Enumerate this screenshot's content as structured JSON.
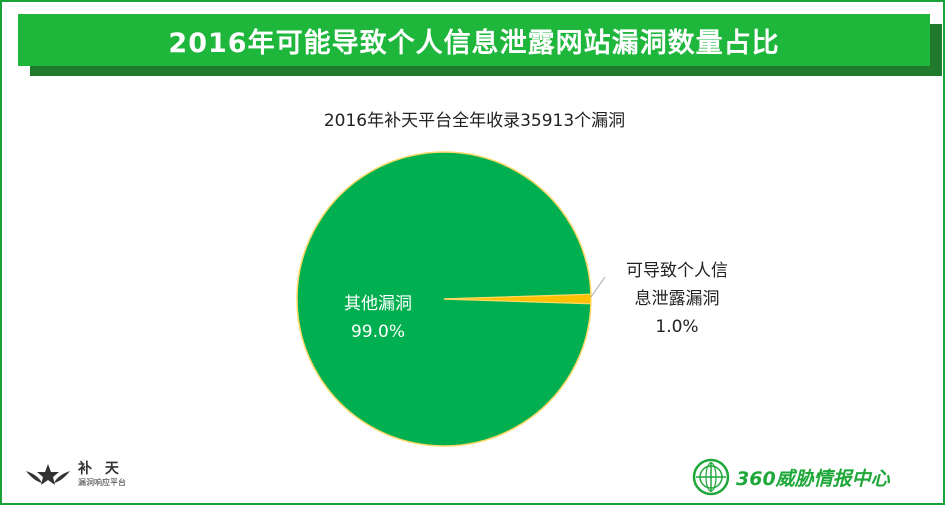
{
  "header": {
    "title": "2016年可能导致个人信息泄露网站漏洞数量占比"
  },
  "chart_data": {
    "type": "pie",
    "title": "2016年补天平台全年收录35913个漏洞",
    "slices": [
      {
        "name_lines": [
          "其他漏洞"
        ],
        "value": 99.0,
        "label": "99.0%",
        "color": "#00b050"
      },
      {
        "name_lines": [
          "可导致个人信",
          "息泄露漏洞"
        ],
        "value": 1.0,
        "label": "1.0%",
        "color": "#ffc000"
      }
    ],
    "edge_color": "#ffd966"
  },
  "logos": {
    "left_name": "补 天",
    "left_sub": "漏洞响应平台",
    "right_name": "360威胁情报中心",
    "star_icon_color": "#333333",
    "globe_icon_color": "#1fa83a"
  }
}
